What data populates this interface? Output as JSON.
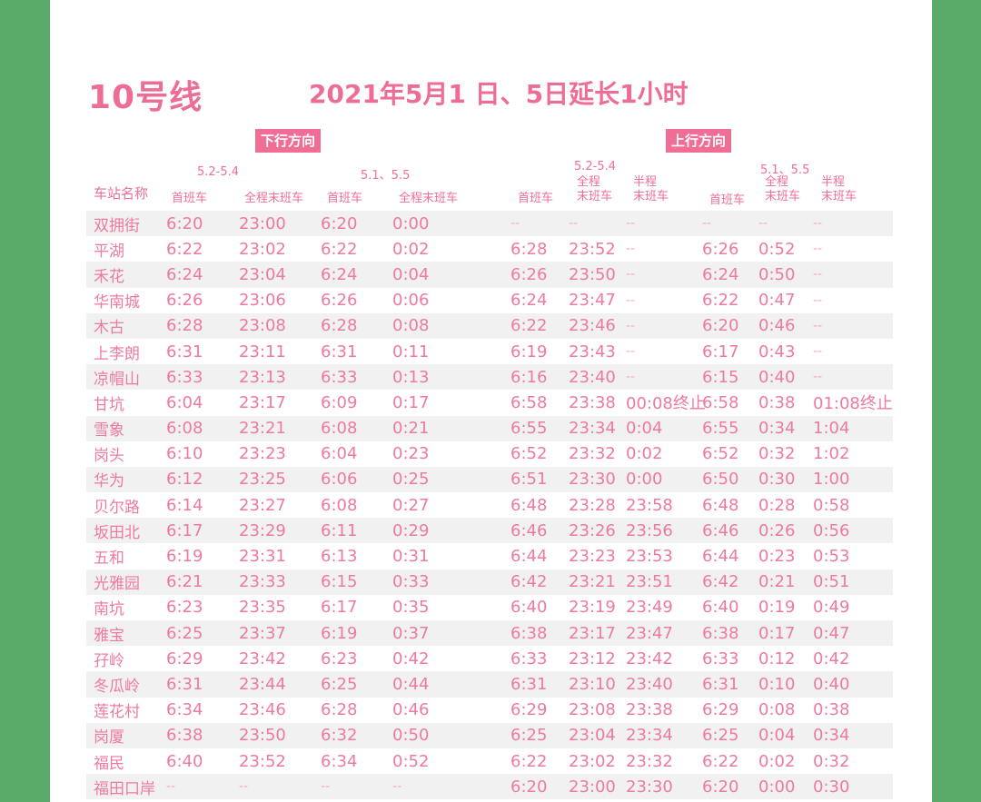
{
  "title": "10号线",
  "notice": "2021年5月1 日、5日延长1小时",
  "down": {
    "label": "下行方向",
    "range1": "5.2-5.4",
    "range2": "5.1、5.5",
    "cols": [
      "首班车",
      "全程末班车",
      "首班车",
      "全程末班车"
    ]
  },
  "up": {
    "label": "上行方向",
    "range1": "5.2-5.4",
    "range2": "5.1、5.5",
    "first": "首班车",
    "full_last": "全程\n末班车",
    "half_last": "半程\n末班车"
  },
  "station_header": "车站名称",
  "rows": [
    [
      "双拥街",
      "6:20",
      "23:00",
      "6:20",
      "0:00",
      "--",
      "--",
      "--",
      "--",
      "--",
      "--"
    ],
    [
      "平湖",
      "6:22",
      "23:02",
      "6:22",
      "0:02",
      "6:28",
      "23:52",
      "--",
      "6:26",
      "0:52",
      "--"
    ],
    [
      "禾花",
      "6:24",
      "23:04",
      "6:24",
      "0:04",
      "6:26",
      "23:50",
      "--",
      "6:24",
      "0:50",
      "--"
    ],
    [
      "华南城",
      "6:26",
      "23:06",
      "6:26",
      "0:06",
      "6:24",
      "23:47",
      "--",
      "6:22",
      "0:47",
      "--"
    ],
    [
      "木古",
      "6:28",
      "23:08",
      "6:28",
      "0:08",
      "6:22",
      "23:46",
      "--",
      "6:20",
      "0:46",
      "--"
    ],
    [
      "上李朗",
      "6:31",
      "23:11",
      "6:31",
      "0:11",
      "6:19",
      "23:43",
      "--",
      "6:17",
      "0:43",
      "--"
    ],
    [
      "凉帽山",
      "6:33",
      "23:13",
      "6:33",
      "0:13",
      "6:16",
      "23:40",
      "--",
      "6:15",
      "0:40",
      "--"
    ],
    [
      "甘坑",
      "6:04",
      "23:17",
      "6:09",
      "0:17",
      "6:58",
      "23:38",
      "00:08终止",
      "6:58",
      "0:38",
      "01:08终止"
    ],
    [
      "雪象",
      "6:08",
      "23:21",
      "6:08",
      "0:21",
      "6:55",
      "23:34",
      "0:04",
      "6:55",
      "0:34",
      "1:04"
    ],
    [
      "岗头",
      "6:10",
      "23:23",
      "6:04",
      "0:23",
      "6:52",
      "23:32",
      "0:02",
      "6:52",
      "0:32",
      "1:02"
    ],
    [
      "华为",
      "6:12",
      "23:25",
      "6:06",
      "0:25",
      "6:51",
      "23:30",
      "0:00",
      "6:50",
      "0:30",
      "1:00"
    ],
    [
      "贝尔路",
      "6:14",
      "23:27",
      "6:08",
      "0:27",
      "6:48",
      "23:28",
      "23:58",
      "6:48",
      "0:28",
      "0:58"
    ],
    [
      "坂田北",
      "6:17",
      "23:29",
      "6:11",
      "0:29",
      "6:46",
      "23:26",
      "23:56",
      "6:46",
      "0:26",
      "0:56"
    ],
    [
      "五和",
      "6:19",
      "23:31",
      "6:13",
      "0:31",
      "6:44",
      "23:23",
      "23:53",
      "6:44",
      "0:23",
      "0:53"
    ],
    [
      "光雅园",
      "6:21",
      "23:33",
      "6:15",
      "0:33",
      "6:42",
      "23:21",
      "23:51",
      "6:42",
      "0:21",
      "0:51"
    ],
    [
      "南坑",
      "6:23",
      "23:35",
      "6:17",
      "0:35",
      "6:40",
      "23:19",
      "23:49",
      "6:40",
      "0:19",
      "0:49"
    ],
    [
      "雅宝",
      "6:25",
      "23:37",
      "6:19",
      "0:37",
      "6:38",
      "23:17",
      "23:47",
      "6:38",
      "0:17",
      "0:47"
    ],
    [
      "孖岭",
      "6:29",
      "23:42",
      "6:23",
      "0:42",
      "6:33",
      "23:12",
      "23:42",
      "6:33",
      "0:12",
      "0:42"
    ],
    [
      "冬瓜岭",
      "6:31",
      "23:44",
      "6:25",
      "0:44",
      "6:31",
      "23:10",
      "23:40",
      "6:31",
      "0:10",
      "0:40"
    ],
    [
      "莲花村",
      "6:34",
      "23:46",
      "6:28",
      "0:46",
      "6:29",
      "23:08",
      "23:38",
      "6:29",
      "0:08",
      "0:38"
    ],
    [
      "岗厦",
      "6:38",
      "23:50",
      "6:32",
      "0:50",
      "6:25",
      "23:04",
      "23:34",
      "6:25",
      "0:04",
      "0:34"
    ],
    [
      "福民",
      "6:40",
      "23:52",
      "6:34",
      "0:52",
      "6:22",
      "23:02",
      "23:32",
      "6:22",
      "0:02",
      "0:32"
    ],
    [
      "福田口岸",
      "--",
      "--",
      "--",
      "--",
      "6:20",
      "23:00",
      "23:30",
      "6:20",
      "0:00",
      "0:30"
    ]
  ],
  "colors": {
    "accent": "#ee6d95",
    "side_background": "#5aab6a",
    "stripe": "#f1f1f1"
  }
}
